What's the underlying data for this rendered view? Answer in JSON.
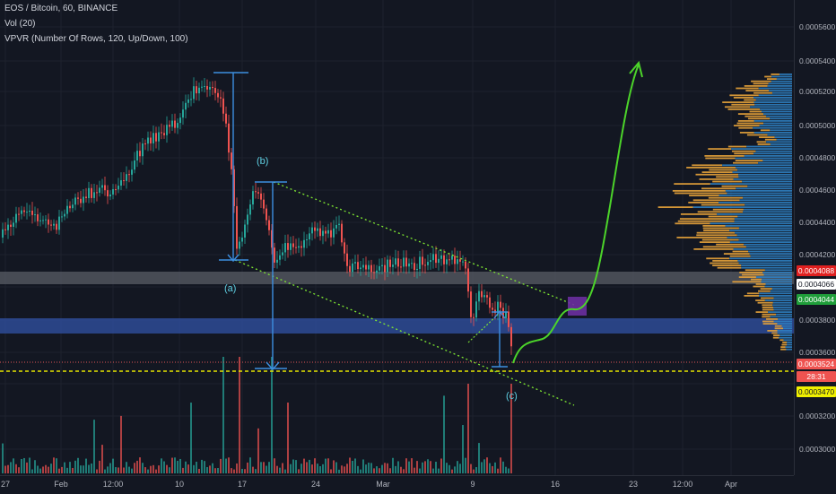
{
  "legend": {
    "symbol": "EOS / Bitcoin, 60, BINANCE",
    "volume": "Vol (20)",
    "vpvr": "VPVR (Number Of Rows, 120, Up/Down, 100)"
  },
  "price_axis": {
    "ticks": [
      "0.0005600",
      "0.0005400",
      "0.0005200",
      "0.0005000",
      "0.0004800",
      "0.0004600",
      "0.0004400",
      "0.0004200",
      "0.0003800",
      "0.0003600",
      "0.0003200",
      "0.0003000"
    ],
    "badges": {
      "resistance_high": "0.0004088",
      "resistance_low": "0.0004066",
      "green_level": "0.0004044",
      "current_price": "0.0003524",
      "countdown": "28:31",
      "yellow_level": "0.0003470"
    }
  },
  "time_axis": {
    "labels": [
      "27",
      "Feb",
      "12:00",
      "10",
      "17",
      "24",
      "Mar",
      "9",
      "16",
      "23",
      "12:00",
      "Apr"
    ]
  },
  "annotations": {
    "a": "(a)",
    "b": "(b)",
    "c": "(c)"
  },
  "colors": {
    "background": "#131722",
    "up_candle": "#26a69a",
    "down_candle": "#ef5350",
    "vpvr_up": "#2f7fc1",
    "vpvr_down": "#e8a33a",
    "channel_lines": "#7fe832",
    "projection": "#4cd42a",
    "measure": "#3d8fe0",
    "resistance_band": "#5a5e66",
    "support_band": "#2f4f9e",
    "dashed_yellow": "#e6e600",
    "dotted_red": "#e05555",
    "target_box": "#6b2fa0"
  }
}
